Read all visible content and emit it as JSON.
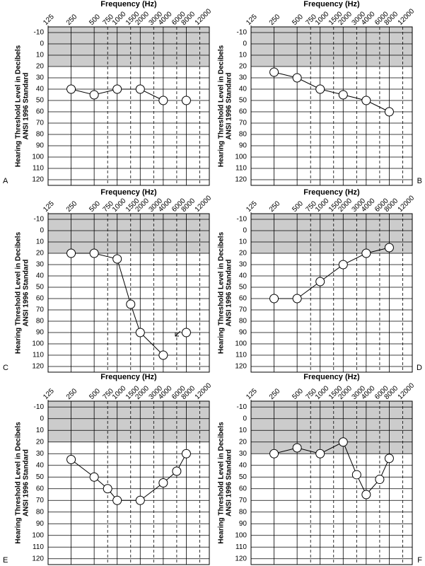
{
  "chart_data": [
    {
      "type": "line",
      "label": "A",
      "title": "Frequency (Hz)",
      "ylabel": "Hearing Threshold Level in Decibels",
      "ylabel2": "ANSI 1996 Standard",
      "x": [
        250,
        500,
        1000,
        2000,
        4000,
        6000,
        8000
      ],
      "values": [
        40,
        45,
        40,
        40,
        50,
        null,
        50
      ],
      "xscale": "log",
      "xlim": [
        125,
        16000
      ],
      "xticks": [
        125,
        250,
        500,
        750,
        1000,
        1500,
        2000,
        3000,
        4000,
        6000,
        8000,
        12000
      ],
      "ylim": [
        -15,
        125
      ],
      "yticks": [
        -10,
        0,
        10,
        20,
        30,
        40,
        50,
        60,
        70,
        80,
        90,
        100,
        110,
        120
      ],
      "y_inverted": true,
      "shade_to": 20,
      "shade_color": "#cccccc",
      "color": "#000000"
    },
    {
      "type": "line",
      "label": "B",
      "title": "Frequency (Hz)",
      "ylabel": "Hearing Threshold Level in Decibels",
      "ylabel2": "ANSI 1996 Standard",
      "x": [
        250,
        500,
        1000,
        2000,
        4000,
        8000
      ],
      "values": [
        25,
        30,
        40,
        45,
        50,
        60
      ],
      "xscale": "log",
      "xlim": [
        125,
        16000
      ],
      "xticks": [
        125,
        250,
        500,
        750,
        1000,
        1500,
        2000,
        3000,
        4000,
        6000,
        8000,
        12000
      ],
      "ylim": [
        -15,
        125
      ],
      "yticks": [
        -10,
        0,
        10,
        20,
        30,
        40,
        50,
        60,
        70,
        80,
        90,
        100,
        110,
        120
      ],
      "y_inverted": true,
      "shade_to": 20,
      "shade_color": "#cccccc",
      "color": "#000000"
    },
    {
      "type": "line",
      "label": "C",
      "title": "Frequency (Hz)",
      "ylabel": "Hearing Threshold Level in Decibels",
      "ylabel2": "ANSI 1996 Standard",
      "x": [
        250,
        500,
        1000,
        1500,
        2000,
        4000,
        6000,
        8000
      ],
      "values": [
        20,
        20,
        25,
        65,
        90,
        110,
        null,
        90
      ],
      "xscale": "log",
      "xlim": [
        125,
        16000
      ],
      "xticks": [
        125,
        250,
        500,
        750,
        1000,
        1500,
        2000,
        3000,
        4000,
        6000,
        8000,
        12000
      ],
      "ylim": [
        -15,
        125
      ],
      "yticks": [
        -10,
        0,
        10,
        20,
        30,
        40,
        50,
        60,
        70,
        80,
        90,
        100,
        110,
        120
      ],
      "y_inverted": true,
      "shade_to": 20,
      "shade_color": "#cccccc",
      "color": "#000000"
    },
    {
      "type": "line",
      "label": "D",
      "title": "Frequency (Hz)",
      "ylabel": "Hearing Threshold Level in Decibels",
      "ylabel2": "ANSI 1996 Standard",
      "x": [
        250,
        500,
        1000,
        2000,
        4000,
        8000
      ],
      "values": [
        60,
        60,
        45,
        30,
        20,
        15
      ],
      "xscale": "log",
      "xlim": [
        125,
        16000
      ],
      "xticks": [
        125,
        250,
        500,
        750,
        1000,
        1500,
        2000,
        3000,
        4000,
        6000,
        8000,
        12000
      ],
      "ylim": [
        -15,
        125
      ],
      "yticks": [
        -10,
        0,
        10,
        20,
        30,
        40,
        50,
        60,
        70,
        80,
        90,
        100,
        110,
        120
      ],
      "y_inverted": true,
      "shade_to": 20,
      "shade_color": "#cccccc",
      "color": "#000000"
    },
    {
      "type": "line",
      "label": "E",
      "title": "Frequency (Hz)",
      "ylabel": "Hearing Threshold Level in Decibels",
      "ylabel2": "ANSI 1996 Standard",
      "x": [
        250,
        500,
        750,
        1000,
        2000,
        4000,
        6000,
        8000
      ],
      "values": [
        35,
        50,
        60,
        70,
        70,
        55,
        45,
        30
      ],
      "xscale": "log",
      "xlim": [
        125,
        16000
      ],
      "xticks": [
        125,
        250,
        500,
        750,
        1000,
        1500,
        2000,
        3000,
        4000,
        6000,
        8000,
        12000
      ],
      "ylim": [
        -15,
        125
      ],
      "yticks": [
        -10,
        0,
        10,
        20,
        30,
        40,
        50,
        60,
        70,
        80,
        90,
        100,
        110,
        120
      ],
      "y_inverted": true,
      "shade_to": 20,
      "shade_color": "#cccccc",
      "color": "#000000"
    },
    {
      "type": "line",
      "label": "F",
      "title": "Frequency (Hz)",
      "ylabel": "Hearing Threshold Level in Decibels",
      "ylabel2": "ANSI 1996 Standard",
      "x": [
        250,
        500,
        1000,
        2000,
        3000,
        4000,
        6000,
        8000
      ],
      "values": [
        30,
        25,
        30,
        20,
        48,
        65,
        52,
        34
      ],
      "xscale": "log",
      "xlim": [
        125,
        16000
      ],
      "xticks": [
        125,
        250,
        500,
        750,
        1000,
        1500,
        2000,
        3000,
        4000,
        6000,
        8000,
        12000
      ],
      "ylim": [
        -15,
        125
      ],
      "yticks": [
        -10,
        0,
        10,
        20,
        30,
        40,
        50,
        60,
        70,
        80,
        90,
        100,
        110,
        120
      ],
      "y_inverted": true,
      "shade_to": 30,
      "shade_color": "#cccccc",
      "color": "#000000"
    }
  ]
}
